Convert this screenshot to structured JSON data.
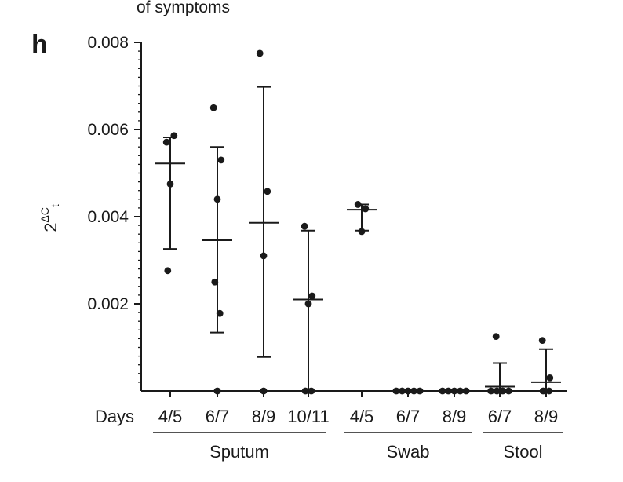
{
  "header_fragment": "of symptoms",
  "chart_data": {
    "type": "scatter",
    "panel_label": "h",
    "ylabel": "2^ΔCt",
    "ylabel_base": "2",
    "ylabel_sup": "ΔC",
    "ylabel_sub": "t",
    "ylim": [
      0,
      0.008
    ],
    "y_ticks": [
      0.002,
      0.004,
      0.006,
      0.008
    ],
    "y_tick_labels": [
      "0.002",
      "0.004",
      "0.006",
      "0.008"
    ],
    "x_prefix_label": "Days",
    "categories": [
      "4/5",
      "6/7",
      "8/9",
      "10/11",
      "4/5",
      "6/7",
      "8/9",
      "6/7",
      "8/9"
    ],
    "groups": [
      {
        "name": "Sputum",
        "first": 0,
        "last": 3
      },
      {
        "name": "Swab",
        "first": 4,
        "last": 6
      },
      {
        "name": "Stool",
        "first": 7,
        "last": 8
      }
    ],
    "points": [
      [
        0.00571,
        0.00586,
        0.00475,
        0.00276
      ],
      [
        0.0065,
        0.0053,
        0.0044,
        0.0025,
        0.00178,
        0.0
      ],
      [
        0.00775,
        0.00458,
        0.0031,
        0.0
      ],
      [
        0.00378,
        0.00218,
        0.002,
        0.0,
        0.0
      ],
      [
        0.00428,
        0.00418,
        0.00366
      ],
      [
        0.0,
        0.0,
        0.0,
        0.0,
        0.0
      ],
      [
        0.0,
        0.0,
        0.0,
        0.0,
        0.0
      ],
      [
        0.00125,
        0.0,
        0.0,
        0.0,
        0.0
      ],
      [
        0.00116,
        0.0003,
        0.0,
        0.0
      ]
    ],
    "means": [
      0.00522,
      0.00346,
      0.00386,
      0.0021,
      0.00416,
      0.0,
      0.0,
      0.0001,
      0.0002
    ],
    "error_upper": [
      0.00582,
      0.0056,
      0.00698,
      0.00368,
      0.00428,
      0.0,
      0.0,
      0.00064,
      0.00096
    ],
    "error_lower": [
      0.00326,
      0.00134,
      0.00078,
      0.0,
      0.00368,
      0.0,
      0.0,
      0.0,
      0.0
    ]
  }
}
